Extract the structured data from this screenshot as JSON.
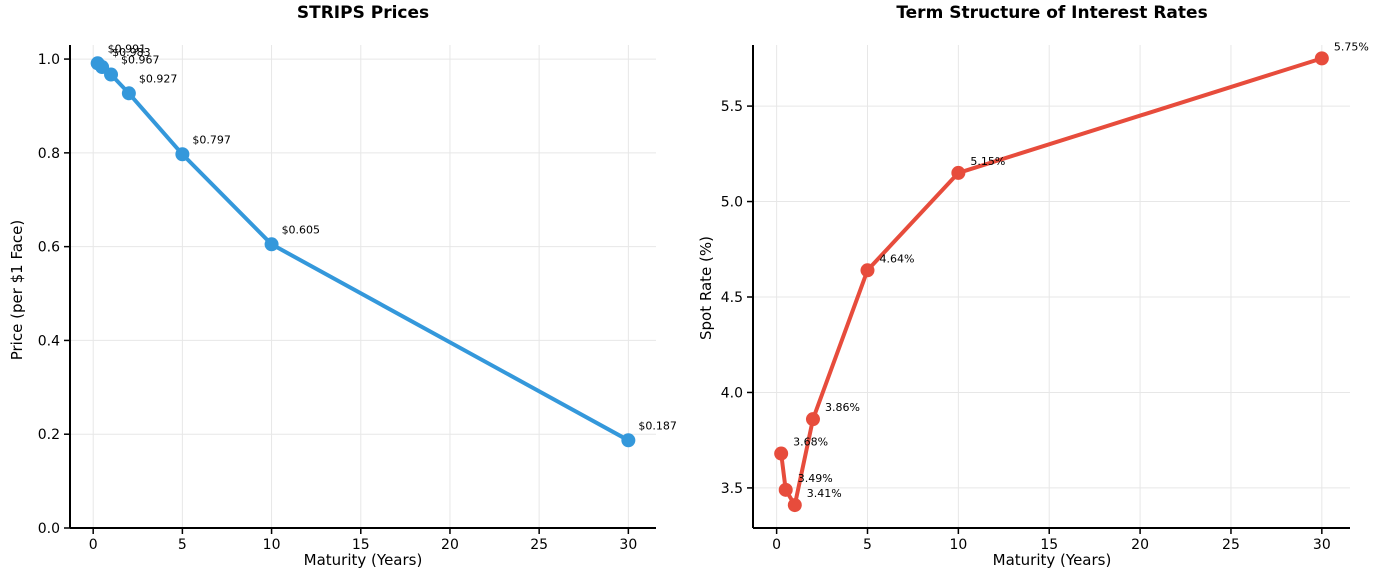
{
  "figure": {
    "background": "#ffffff",
    "grid_color": "#e7e7e7",
    "spine_color": "#000000",
    "text_color": "#000000"
  },
  "chart_data": [
    {
      "type": "line",
      "title": "STRIPS Prices",
      "xlabel": "Maturity (Years)",
      "ylabel": "Price (per $1 Face)",
      "line_color": "#3498db",
      "marker": "circle",
      "grid": true,
      "legend": "none",
      "x": [
        0.25,
        0.5,
        1,
        2,
        5,
        10,
        30
      ],
      "y": [
        0.991,
        0.983,
        0.967,
        0.927,
        0.797,
        0.605,
        0.187
      ],
      "point_labels": [
        "$0.991",
        "$0.983",
        "$0.967",
        "$0.927",
        "$0.797",
        "$0.605",
        "$0.187"
      ],
      "xlim": [
        -1.3,
        31.55
      ],
      "ylim": [
        0,
        1.03
      ],
      "xticks": [
        0,
        5,
        10,
        15,
        20,
        25,
        30
      ],
      "xtick_labels": [
        "0",
        "5",
        "10",
        "15",
        "20",
        "25",
        "30"
      ],
      "yticks": [
        0.0,
        0.2,
        0.4,
        0.6,
        0.8,
        1.0
      ],
      "ytick_labels": [
        "0.0",
        "0.2",
        "0.4",
        "0.6",
        "0.8",
        "1.0"
      ]
    },
    {
      "type": "line",
      "title": "Term Structure of Interest Rates",
      "xlabel": "Maturity (Years)",
      "ylabel": "Spot Rate (%)",
      "line_color": "#e74c3c",
      "marker": "circle",
      "grid": true,
      "legend": "none",
      "x": [
        0.25,
        0.5,
        1,
        2,
        5,
        10,
        30
      ],
      "y": [
        3.68,
        3.49,
        3.41,
        3.86,
        4.64,
        5.15,
        5.75
      ],
      "point_labels": [
        "3.68%",
        "3.49%",
        "3.41%",
        "3.86%",
        "4.64%",
        "5.15%",
        "5.75%"
      ],
      "xlim": [
        -1.3,
        31.55
      ],
      "ylim": [
        3.29,
        5.82
      ],
      "xticks": [
        0,
        5,
        10,
        15,
        20,
        25,
        30
      ],
      "xtick_labels": [
        "0",
        "5",
        "10",
        "15",
        "20",
        "25",
        "30"
      ],
      "yticks": [
        3.5,
        4.0,
        4.5,
        5.0,
        5.5
      ],
      "ytick_labels": [
        "3.5",
        "4.0",
        "4.5",
        "5.0",
        "5.5"
      ]
    }
  ]
}
